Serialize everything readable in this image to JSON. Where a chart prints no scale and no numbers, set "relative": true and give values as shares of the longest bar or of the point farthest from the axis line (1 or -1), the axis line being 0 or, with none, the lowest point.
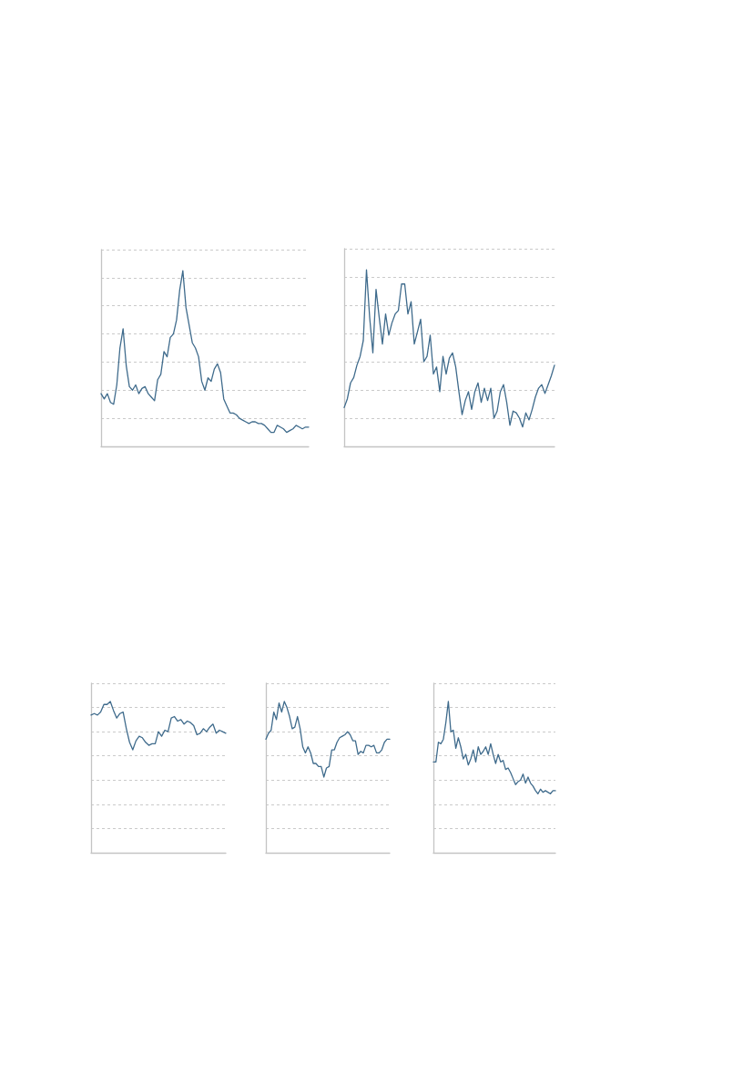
{
  "chart_data": [
    {
      "type": "line",
      "relative": true,
      "grid": "y",
      "line_style": "solid",
      "categories": [
        null,
        null,
        null,
        null,
        null,
        null,
        null,
        null,
        null,
        null,
        null,
        null,
        null,
        null,
        null,
        null,
        null,
        null,
        null,
        null,
        null,
        null,
        null,
        null,
        null,
        null,
        null,
        null,
        null,
        null,
        null,
        null,
        null,
        null,
        null,
        null,
        null,
        null,
        null,
        null,
        null,
        null,
        null,
        null,
        null,
        null,
        null,
        null,
        null,
        null,
        null,
        null,
        null,
        null,
        null,
        null,
        null,
        null,
        null,
        null,
        null,
        null,
        null,
        null,
        null,
        null,
        null
      ],
      "series": [
        {
          "color": "#3f6b8c",
          "values": [
            0.3,
            0.27,
            0.3,
            0.25,
            0.24,
            0.35,
            0.56,
            0.67,
            0.46,
            0.34,
            0.32,
            0.35,
            0.3,
            0.33,
            0.34,
            0.3,
            0.28,
            0.26,
            0.38,
            0.41,
            0.54,
            0.51,
            0.62,
            0.64,
            0.72,
            0.89,
            1,
            0.79,
            0.69,
            0.59,
            0.56,
            0.51,
            0.37,
            0.32,
            0.39,
            0.37,
            0.44,
            0.47,
            0.42,
            0.27,
            0.23,
            0.19,
            0.19,
            0.18,
            0.16,
            0.15,
            0.14,
            0.13,
            0.14,
            0.14,
            0.13,
            0.13,
            0.12,
            0.1,
            0.08,
            0.08,
            0.12,
            0.11,
            0.1,
            0.08,
            0.09,
            0.1,
            0.12,
            0.11,
            0.1,
            0.11,
            0.11
          ]
        }
      ]
    },
    {
      "type": "line",
      "relative": true,
      "grid": "y",
      "line_style": "solid",
      "categories": [
        null,
        null,
        null,
        null,
        null,
        null,
        null,
        null,
        null,
        null,
        null,
        null,
        null,
        null,
        null,
        null,
        null,
        null,
        null,
        null,
        null,
        null,
        null,
        null,
        null,
        null,
        null,
        null,
        null,
        null,
        null,
        null,
        null,
        null,
        null,
        null,
        null,
        null,
        null,
        null,
        null,
        null,
        null,
        null,
        null,
        null,
        null,
        null,
        null,
        null,
        null,
        null,
        null,
        null,
        null,
        null,
        null,
        null,
        null,
        null,
        null,
        null,
        null,
        null,
        null,
        null,
        null
      ],
      "series": [
        {
          "color": "#3f6b8c",
          "values": [
            0.22,
            0.27,
            0.36,
            0.39,
            0.46,
            0.51,
            0.6,
            1,
            0.73,
            0.53,
            0.89,
            0.73,
            0.58,
            0.75,
            0.63,
            0.7,
            0.75,
            0.77,
            0.92,
            0.92,
            0.75,
            0.82,
            0.58,
            0.65,
            0.72,
            0.48,
            0.51,
            0.63,
            0.41,
            0.45,
            0.31,
            0.51,
            0.41,
            0.5,
            0.53,
            0.45,
            0.31,
            0.18,
            0.26,
            0.31,
            0.21,
            0.31,
            0.36,
            0.25,
            0.33,
            0.26,
            0.33,
            0.16,
            0.2,
            0.31,
            0.35,
            0.25,
            0.12,
            0.2,
            0.19,
            0.16,
            0.11,
            0.19,
            0.15,
            0.21,
            0.28,
            0.33,
            0.35,
            0.3,
            0.35,
            0.4,
            0.46
          ]
        }
      ]
    },
    {
      "type": "line",
      "relative": true,
      "grid": "y",
      "line_style": "solid",
      "categories": [
        null,
        null,
        null,
        null,
        null,
        null,
        null,
        null,
        null,
        null,
        null,
        null,
        null,
        null,
        null,
        null,
        null,
        null,
        null,
        null,
        null,
        null,
        null,
        null,
        null,
        null,
        null,
        null,
        null,
        null,
        null,
        null,
        null,
        null,
        null,
        null,
        null,
        null,
        null,
        null,
        null,
        null,
        null
      ],
      "series": [
        {
          "color": "#3f6b8c",
          "values": [
            0.91,
            0.92,
            0.91,
            0.93,
            0.98,
            0.98,
            1,
            0.94,
            0.89,
            0.92,
            0.93,
            0.82,
            0.73,
            0.68,
            0.74,
            0.77,
            0.76,
            0.73,
            0.71,
            0.72,
            0.72,
            0.8,
            0.77,
            0.81,
            0.8,
            0.89,
            0.9,
            0.87,
            0.88,
            0.85,
            0.87,
            0.86,
            0.84,
            0.78,
            0.79,
            0.82,
            0.8,
            0.83,
            0.85,
            0.79,
            0.81,
            0.8,
            0.79
          ]
        }
      ]
    },
    {
      "type": "line",
      "relative": true,
      "grid": "y",
      "line_style": "solid",
      "categories": [
        null,
        null,
        null,
        null,
        null,
        null,
        null,
        null,
        null,
        null,
        null,
        null,
        null,
        null,
        null,
        null,
        null,
        null,
        null,
        null,
        null,
        null,
        null,
        null,
        null,
        null,
        null,
        null,
        null,
        null,
        null,
        null,
        null,
        null,
        null,
        null,
        null,
        null,
        null,
        null,
        null,
        null,
        null,
        null,
        null,
        null,
        null,
        null
      ],
      "series": [
        {
          "color": "#3f6b8c",
          "values": [
            0.75,
            0.79,
            0.81,
            0.93,
            0.88,
            0.99,
            0.93,
            1,
            0.96,
            0.9,
            0.82,
            0.83,
            0.9,
            0.82,
            0.7,
            0.66,
            0.7,
            0.66,
            0.59,
            0.59,
            0.57,
            0.57,
            0.5,
            0.56,
            0.57,
            0.68,
            0.68,
            0.73,
            0.76,
            0.77,
            0.78,
            0.8,
            0.78,
            0.74,
            0.74,
            0.65,
            0.67,
            0.66,
            0.71,
            0.71,
            0.7,
            0.71,
            0.66,
            0.66,
            0.68,
            0.73,
            0.75,
            0.75
          ]
        }
      ]
    },
    {
      "type": "line",
      "relative": true,
      "grid": "y",
      "line_style": "solid",
      "categories": [
        null,
        null,
        null,
        null,
        null,
        null,
        null,
        null,
        null,
        null,
        null,
        null,
        null,
        null,
        null,
        null,
        null,
        null,
        null,
        null,
        null,
        null,
        null,
        null,
        null,
        null,
        null,
        null,
        null,
        null,
        null,
        null,
        null,
        null,
        null,
        null,
        null,
        null,
        null,
        null,
        null,
        null,
        null,
        null,
        null,
        null,
        null,
        null,
        null,
        null
      ],
      "series": [
        {
          "color": "#3f6b8c",
          "values": [
            0.6,
            0.6,
            0.73,
            0.72,
            0.75,
            0.86,
            1,
            0.8,
            0.81,
            0.69,
            0.76,
            0.7,
            0.62,
            0.65,
            0.58,
            0.62,
            0.68,
            0.6,
            0.7,
            0.65,
            0.67,
            0.7,
            0.65,
            0.72,
            0.65,
            0.59,
            0.65,
            0.6,
            0.61,
            0.55,
            0.56,
            0.53,
            0.49,
            0.45,
            0.47,
            0.48,
            0.52,
            0.46,
            0.5,
            0.46,
            0.44,
            0.41,
            0.39,
            0.42,
            0.4,
            0.41,
            0.4,
            0.39,
            0.41,
            0.41
          ]
        }
      ]
    }
  ]
}
